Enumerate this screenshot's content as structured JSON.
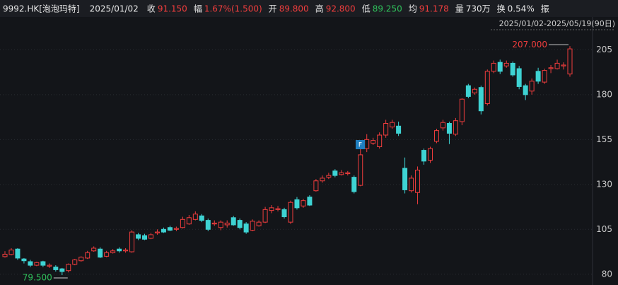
{
  "header": {
    "symbol": "9992.HK[泡泡玛特]",
    "date": "2025/01/02",
    "fields": [
      {
        "label": "收",
        "value": "91.150",
        "color": "#f03d3d"
      },
      {
        "label": "幅",
        "value": "1.67%(1.500)",
        "color": "#f03d3d"
      },
      {
        "label": "开",
        "value": "89.800",
        "color": "#f03d3d"
      },
      {
        "label": "高",
        "value": "92.800",
        "color": "#f03d3d"
      },
      {
        "label": "低",
        "value": "89.250",
        "color": "#2fc15b"
      },
      {
        "label": "均",
        "value": "91.178",
        "color": "#f03d3d"
      },
      {
        "label": "量",
        "value": "730万",
        "color": "#e6e6e6"
      },
      {
        "label": "换",
        "value": "0.54%",
        "color": "#e6e6e6"
      },
      {
        "label": "振",
        "value": null,
        "color": "#e6e6e6"
      }
    ]
  },
  "chart_data": {
    "type": "candlestick",
    "range_label": "2025/01/02-2025/05/19(90日)",
    "high_label": "207.000",
    "low_label": "79.500",
    "marker_label": "F",
    "up_color": "#f03d3d",
    "down_color": "#3ed3d3",
    "ylim": [
      74,
      215
    ],
    "yticks": [
      80,
      105,
      130,
      155,
      180,
      205
    ],
    "grid": true,
    "open": [
      89.8,
      91,
      94,
      88.5,
      87,
      85,
      87,
      84.5,
      84,
      83,
      82,
      85.5,
      87.5,
      89,
      93,
      94,
      90,
      92,
      94,
      93,
      92.5,
      102,
      101.5,
      100,
      103,
      105,
      106,
      105,
      106,
      108,
      110.5,
      112.5,
      110,
      108,
      106,
      107.5,
      111.5,
      110,
      108,
      104.5,
      107,
      109,
      115.5,
      116,
      116,
      109,
      121.5,
      118,
      123,
      126.5,
      132,
      134,
      137.5,
      135.5,
      136,
      134,
      129.5,
      150,
      153,
      151,
      157.5,
      162,
      162.5,
      139,
      126.5,
      125.5,
      149,
      143.5,
      154,
      161.5,
      164,
      158,
      165,
      185,
      181,
      184,
      175,
      193,
      198,
      196,
      197.5,
      194.5,
      185,
      182,
      193,
      187,
      194.5,
      194.5,
      196,
      191.5
    ],
    "high": [
      92.8,
      94.5,
      94.5,
      89,
      88,
      87,
      87.5,
      86,
      85,
      83.5,
      86,
      88.5,
      90,
      93,
      95.5,
      95,
      93,
      94,
      95,
      94.5,
      104.5,
      103,
      102.5,
      103,
      105,
      106,
      107,
      106.5,
      112,
      113,
      115,
      113.5,
      111,
      110,
      110,
      110,
      112.5,
      111,
      109,
      110.5,
      110,
      117.5,
      118.5,
      118,
      117,
      121,
      123,
      122,
      124,
      133,
      135,
      136.5,
      138.5,
      138,
      137.5,
      135,
      150,
      158,
      156,
      159,
      166,
      166,
      165,
      145,
      135,
      140,
      150,
      151,
      161,
      166,
      165,
      167,
      178,
      186,
      184,
      185,
      194,
      199,
      199.5,
      199,
      198.5,
      196,
      186,
      189,
      195,
      194.5,
      196.5,
      199.5,
      198,
      207
    ],
    "low": [
      89.25,
      90.5,
      88,
      86,
      84,
      84.5,
      84,
      83.5,
      81.5,
      79.5,
      81,
      85,
      87,
      88.5,
      92.5,
      89,
      89.5,
      91.5,
      92,
      92,
      92,
      99,
      99,
      99.5,
      102,
      103,
      104,
      104,
      105.5,
      107.5,
      110,
      109,
      104,
      107,
      104.5,
      106,
      107,
      105,
      102.5,
      104,
      106.5,
      108.5,
      114,
      115,
      111,
      108,
      116,
      117,
      118,
      126,
      131,
      133,
      134,
      135,
      135,
      125,
      129,
      148,
      152,
      150,
      156,
      161,
      157,
      125,
      125.5,
      119,
      141,
      142,
      153,
      160,
      152.5,
      157,
      163,
      178,
      180,
      169,
      174,
      192,
      191.5,
      195,
      190,
      183,
      177,
      180,
      186,
      186,
      192,
      194,
      194,
      190
    ],
    "close": [
      91.15,
      93.5,
      89,
      87.5,
      85,
      86.5,
      85,
      85,
      82.5,
      81.5,
      85.5,
      88,
      89.5,
      92,
      94.5,
      89.5,
      92,
      93,
      93,
      93.5,
      103.5,
      100,
      99.5,
      102,
      103.5,
      103.5,
      104.5,
      105.5,
      110.5,
      111.5,
      113.5,
      110,
      105,
      108.5,
      109,
      108.5,
      107.5,
      106,
      103.5,
      109.5,
      109,
      116,
      117,
      116.5,
      112,
      120,
      117,
      121,
      118.5,
      132,
      133.5,
      135,
      135,
      136.5,
      136.5,
      126,
      146.5,
      155,
      154.5,
      157.5,
      164,
      164.5,
      158.5,
      127,
      133.5,
      138,
      143,
      150,
      160,
      164.5,
      158.5,
      165.5,
      177.5,
      179,
      183,
      171,
      193,
      197.5,
      193,
      197.5,
      191,
      184.5,
      180,
      187.5,
      187.5,
      193.5,
      195,
      197.5,
      196.5,
      205.5
    ]
  }
}
